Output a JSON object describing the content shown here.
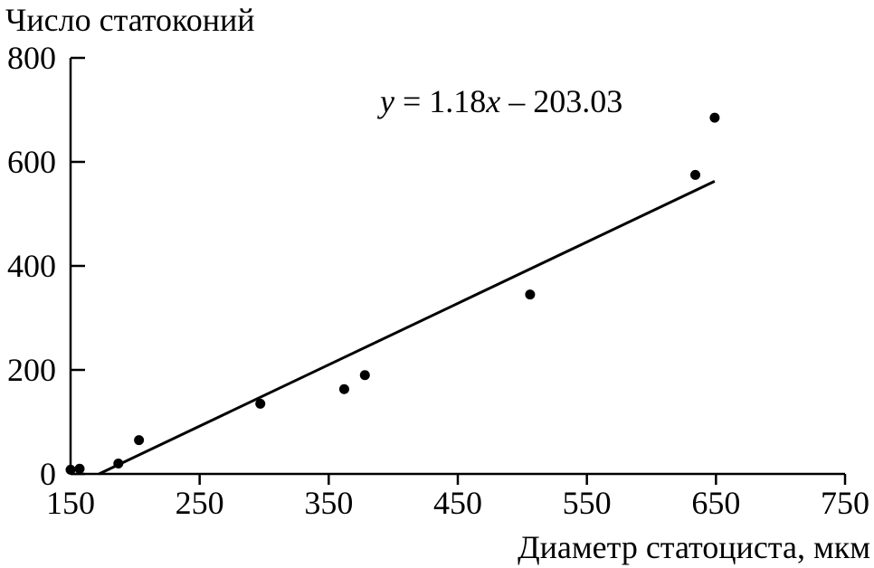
{
  "chart_data": {
    "type": "scatter",
    "ylabel": "Число статоконий",
    "xlabel": "Диаметр статоциста, мкм",
    "equation_parts": [
      "y",
      " = 1.18",
      "x",
      " – 203.03"
    ],
    "xlim": [
      150,
      750
    ],
    "ylim": [
      0,
      800
    ],
    "xticks": [
      150,
      250,
      350,
      450,
      550,
      650,
      750
    ],
    "yticks": [
      0,
      200,
      400,
      600,
      800
    ],
    "x": [
      150,
      157,
      187,
      203,
      297,
      362,
      378,
      506,
      634,
      649
    ],
    "y": [
      8,
      10,
      20,
      65,
      135,
      163,
      190,
      345,
      575,
      685
    ],
    "trendline": {
      "slope": 1.18,
      "intercept": -203.03,
      "x_start": 172,
      "x_end": 649
    },
    "grid": false,
    "legend": "none"
  }
}
